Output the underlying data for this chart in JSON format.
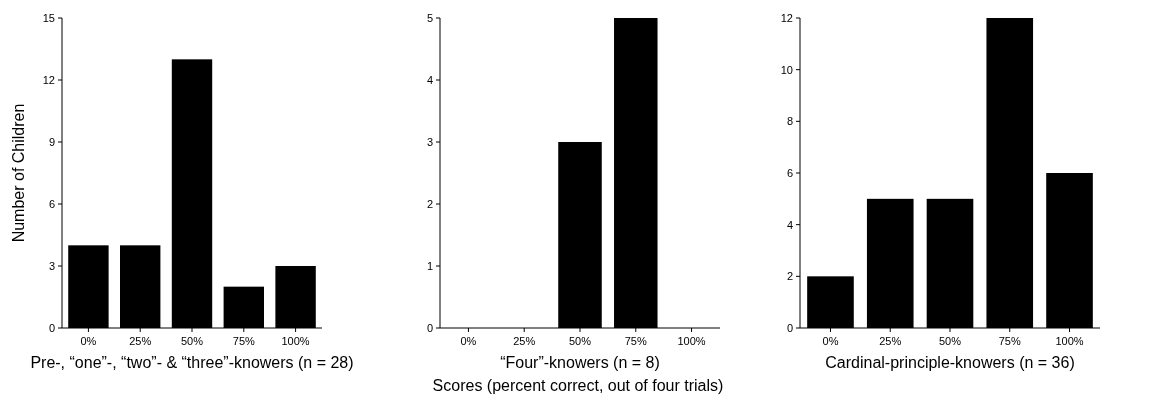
{
  "chart_data": [
    {
      "type": "bar",
      "xlabel": "Pre-, “one”-, “two”- & “three”-knowers (n = 28)",
      "ylabel": "Number of Children",
      "categories": [
        "0%",
        "25%",
        "50%",
        "75%",
        "100%"
      ],
      "values": [
        4,
        4,
        13,
        2,
        3
      ],
      "color": "#000000",
      "ylim": [
        0,
        15
      ],
      "yticks": [
        0,
        3,
        6,
        9,
        12,
        15
      ]
    },
    {
      "type": "bar",
      "xlabel": "“Four”-knowers (n = 8)",
      "categories": [
        "0%",
        "25%",
        "50%",
        "75%",
        "100%"
      ],
      "values": [
        0,
        0,
        3,
        5,
        0
      ],
      "color": "#000000",
      "ylim": [
        0,
        5
      ],
      "yticks": [
        0,
        1,
        2,
        3,
        4,
        5
      ],
      "annotations": [
        "Scores (percent correct, out of four trials)"
      ]
    },
    {
      "type": "bar",
      "xlabel": "Cardinal-principle-knowers (n = 36)",
      "categories": [
        "0%",
        "25%",
        "50%",
        "75%",
        "100%"
      ],
      "values": [
        2,
        5,
        5,
        12,
        6
      ],
      "color": "#000000",
      "ylim": [
        0,
        12
      ],
      "yticks": [
        0,
        2,
        4,
        6,
        8,
        10,
        12
      ]
    }
  ]
}
